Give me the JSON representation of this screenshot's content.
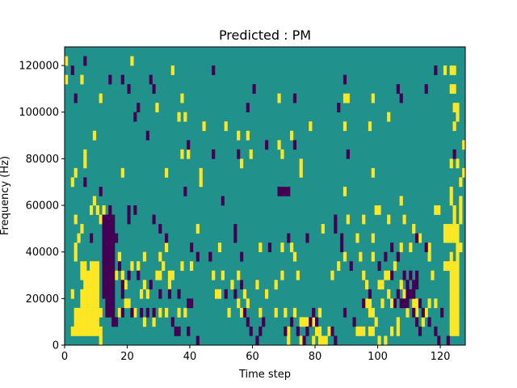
{
  "chart_data": {
    "type": "heatmap",
    "title": "Predicted : PM",
    "xlabel": "Time step",
    "ylabel": "Frequency (Hz)",
    "xlim": [
      0,
      128
    ],
    "ylim": [
      0,
      128000
    ],
    "x_ticks": [
      0,
      20,
      40,
      60,
      80,
      100,
      120
    ],
    "y_ticks": [
      0,
      20000,
      40000,
      60000,
      80000,
      100000,
      120000
    ],
    "x_tick_labels": [
      "0",
      "20",
      "40",
      "60",
      "80",
      "100",
      "120"
    ],
    "y_tick_labels": [
      "0",
      "20000",
      "40000",
      "60000",
      "80000",
      "100000",
      "120000"
    ],
    "time_steps": 128,
    "frequency_bins": 32,
    "bin_height_hz": 4000,
    "value_levels": [
      -1,
      0,
      1
    ],
    "colors": {
      "-1": "#440154",
      "0": "#21918c",
      "1": "#fde725"
    },
    "cells_high": [
      [
        1,
        31
      ],
      [
        1,
        29
      ],
      [
        6,
        29
      ],
      [
        22,
        31
      ],
      [
        35,
        30
      ],
      [
        122,
        30
      ],
      [
        124,
        30
      ],
      [
        125,
        30
      ],
      [
        12,
        27
      ],
      [
        38,
        27
      ],
      [
        69,
        27
      ],
      [
        90,
        27
      ],
      [
        91,
        27
      ],
      [
        99,
        27
      ],
      [
        124,
        28
      ],
      [
        125,
        28
      ],
      [
        30,
        26
      ],
      [
        39,
        25
      ],
      [
        37,
        25
      ],
      [
        104,
        25
      ],
      [
        125,
        26
      ],
      [
        126,
        26
      ],
      [
        126,
        25
      ],
      [
        45,
        24
      ],
      [
        52,
        24
      ],
      [
        79,
        24
      ],
      [
        90,
        24
      ],
      [
        98,
        24
      ],
      [
        125,
        24
      ],
      [
        10,
        23
      ],
      [
        56,
        23
      ],
      [
        59,
        23
      ],
      [
        73,
        23
      ],
      [
        69,
        22
      ],
      [
        128,
        22
      ],
      [
        38,
        21
      ],
      [
        40,
        21
      ],
      [
        60,
        21
      ],
      [
        70,
        21
      ],
      [
        76,
        20
      ],
      [
        57,
        20
      ],
      [
        44,
        19
      ],
      [
        76,
        19
      ],
      [
        99,
        19
      ],
      [
        124,
        20
      ],
      [
        126,
        20
      ],
      [
        7,
        21
      ],
      [
        7,
        20
      ],
      [
        4,
        19
      ],
      [
        3,
        18
      ],
      [
        19,
        19
      ],
      [
        33,
        19
      ],
      [
        44,
        18
      ],
      [
        127,
        18
      ],
      [
        128,
        19
      ],
      [
        10,
        16
      ],
      [
        9,
        15
      ],
      [
        11,
        15
      ],
      [
        12,
        14
      ],
      [
        90,
        17
      ],
      [
        124,
        17
      ],
      [
        4,
        14
      ],
      [
        6,
        13
      ],
      [
        13,
        15
      ],
      [
        5,
        12
      ],
      [
        43,
        13
      ],
      [
        83,
        13
      ],
      [
        99,
        12
      ],
      [
        124,
        16
      ],
      [
        125,
        15
      ],
      [
        4,
        10
      ],
      [
        6,
        9
      ],
      [
        7,
        9
      ],
      [
        9,
        9
      ],
      [
        10,
        9
      ],
      [
        11,
        9
      ],
      [
        4,
        11
      ],
      [
        18,
        10
      ],
      [
        26,
        10
      ],
      [
        31,
        10
      ],
      [
        33,
        11
      ],
      [
        50,
        11
      ],
      [
        63,
        11
      ],
      [
        70,
        11
      ],
      [
        73,
        11
      ],
      [
        99,
        10
      ],
      [
        108,
        11
      ],
      [
        111,
        11
      ],
      [
        117,
        10
      ],
      [
        122,
        9
      ],
      [
        123,
        9
      ],
      [
        124,
        10
      ],
      [
        126,
        10
      ],
      [
        6,
        8
      ],
      [
        7,
        8
      ],
      [
        8,
        8
      ],
      [
        9,
        8
      ],
      [
        10,
        8
      ],
      [
        11,
        8
      ],
      [
        7,
        7
      ],
      [
        8,
        7
      ],
      [
        9,
        7
      ],
      [
        10,
        7
      ],
      [
        11,
        7
      ],
      [
        6,
        6
      ],
      [
        7,
        6
      ],
      [
        8,
        6
      ],
      [
        9,
        6
      ],
      [
        10,
        6
      ],
      [
        11,
        6
      ],
      [
        3,
        6
      ],
      [
        6,
        5
      ],
      [
        7,
        5
      ],
      [
        8,
        5
      ],
      [
        9,
        5
      ],
      [
        10,
        5
      ],
      [
        11,
        5
      ],
      [
        4,
        4
      ],
      [
        5,
        4
      ],
      [
        6,
        4
      ],
      [
        7,
        4
      ],
      [
        8,
        4
      ],
      [
        9,
        4
      ],
      [
        10,
        4
      ],
      [
        11,
        4
      ],
      [
        12,
        4
      ],
      [
        4,
        3
      ],
      [
        5,
        3
      ],
      [
        6,
        3
      ],
      [
        7,
        3
      ],
      [
        8,
        3
      ],
      [
        9,
        3
      ],
      [
        10,
        3
      ],
      [
        11,
        3
      ],
      [
        3,
        2
      ],
      [
        4,
        2
      ],
      [
        5,
        2
      ],
      [
        6,
        2
      ],
      [
        7,
        2
      ],
      [
        8,
        2
      ],
      [
        9,
        2
      ],
      [
        10,
        2
      ],
      [
        11,
        2
      ],
      [
        12,
        2
      ],
      [
        12,
        1
      ],
      [
        17,
        8
      ],
      [
        19,
        8
      ],
      [
        20,
        7
      ],
      [
        22,
        9
      ],
      [
        24,
        9
      ],
      [
        26,
        7
      ],
      [
        30,
        8
      ],
      [
        31,
        8
      ],
      [
        32,
        9
      ],
      [
        34,
        8
      ],
      [
        34,
        7
      ],
      [
        35,
        8
      ],
      [
        38,
        9
      ],
      [
        41,
        9
      ],
      [
        20,
        5
      ],
      [
        21,
        5
      ],
      [
        25,
        6
      ],
      [
        27,
        6
      ],
      [
        18,
        4
      ],
      [
        23,
        4
      ],
      [
        26,
        3
      ],
      [
        29,
        3
      ],
      [
        31,
        4
      ],
      [
        33,
        4
      ],
      [
        37,
        4
      ],
      [
        39,
        4
      ],
      [
        47,
        10
      ],
      [
        48,
        8
      ],
      [
        51,
        8
      ],
      [
        54,
        7
      ],
      [
        56,
        8
      ],
      [
        57,
        7
      ],
      [
        58,
        6
      ],
      [
        59,
        5
      ],
      [
        62,
        7
      ],
      [
        65,
        6
      ],
      [
        68,
        7
      ],
      [
        70,
        8
      ],
      [
        74,
        10
      ],
      [
        75,
        8
      ],
      [
        49,
        6
      ],
      [
        50,
        6
      ],
      [
        53,
        4
      ],
      [
        56,
        5
      ],
      [
        57,
        4
      ],
      [
        63,
        4
      ],
      [
        68,
        4
      ],
      [
        71,
        4
      ],
      [
        74,
        4
      ],
      [
        76,
        3
      ],
      [
        77,
        3
      ],
      [
        78,
        3
      ],
      [
        80,
        3
      ],
      [
        82,
        4
      ],
      [
        72,
        2
      ],
      [
        72,
        1
      ],
      [
        76,
        1
      ],
      [
        80,
        1
      ],
      [
        82,
        1
      ],
      [
        83,
        1
      ],
      [
        84,
        1
      ],
      [
        81,
        2
      ],
      [
        82,
        2
      ],
      [
        85,
        2
      ],
      [
        86,
        8
      ],
      [
        88,
        9
      ],
      [
        90,
        10
      ],
      [
        94,
        12
      ],
      [
        95,
        10
      ],
      [
        96,
        8
      ],
      [
        97,
        7
      ],
      [
        97,
        5
      ],
      [
        98,
        5
      ],
      [
        98,
        4
      ],
      [
        99,
        4
      ],
      [
        100,
        3
      ],
      [
        102,
        5
      ],
      [
        104,
        6
      ],
      [
        105,
        5
      ],
      [
        94,
        2
      ],
      [
        95,
        2
      ],
      [
        96,
        2
      ],
      [
        98,
        2
      ],
      [
        99,
        2
      ],
      [
        101,
        1
      ],
      [
        103,
        1
      ],
      [
        105,
        2
      ],
      [
        107,
        2
      ],
      [
        107,
        3
      ],
      [
        110,
        4
      ],
      [
        113,
        5
      ],
      [
        115,
        3
      ],
      [
        116,
        4
      ],
      [
        91,
        14
      ],
      [
        96,
        14
      ],
      [
        100,
        15
      ],
      [
        101,
        15
      ],
      [
        104,
        14
      ],
      [
        108,
        16
      ],
      [
        109,
        14
      ],
      [
        112,
        13
      ],
      [
        114,
        12
      ],
      [
        117,
        11
      ],
      [
        118,
        8
      ],
      [
        101,
        7
      ],
      [
        102,
        7
      ],
      [
        103,
        8
      ],
      [
        104,
        8
      ],
      [
        106,
        9
      ],
      [
        108,
        7
      ],
      [
        109,
        6
      ],
      [
        112,
        5
      ],
      [
        113,
        4
      ],
      [
        117,
        5
      ],
      [
        119,
        5
      ],
      [
        122,
        13
      ],
      [
        123,
        13
      ],
      [
        124,
        13
      ],
      [
        125,
        13
      ],
      [
        126,
        13
      ],
      [
        122,
        12
      ],
      [
        123,
        12
      ],
      [
        124,
        12
      ],
      [
        125,
        12
      ],
      [
        126,
        12
      ],
      [
        124,
        9
      ],
      [
        125,
        9
      ],
      [
        126,
        9
      ],
      [
        124,
        8
      ],
      [
        125,
        8
      ],
      [
        126,
        8
      ],
      [
        124,
        7
      ],
      [
        125,
        7
      ],
      [
        126,
        7
      ],
      [
        124,
        6
      ],
      [
        125,
        6
      ],
      [
        126,
        6
      ],
      [
        124,
        5
      ],
      [
        125,
        5
      ],
      [
        126,
        5
      ],
      [
        124,
        4
      ],
      [
        125,
        4
      ],
      [
        126,
        4
      ],
      [
        124,
        3
      ],
      [
        125,
        3
      ],
      [
        126,
        3
      ],
      [
        124,
        2
      ],
      [
        125,
        2
      ],
      [
        126,
        2
      ],
      [
        127,
        16
      ],
      [
        127,
        15
      ],
      [
        125,
        14
      ],
      [
        127,
        14
      ],
      [
        126,
        11
      ],
      [
        127,
        11
      ],
      [
        119,
        15
      ],
      [
        120,
        15
      ]
    ],
    "cells_low": [
      [
        7,
        31
      ],
      [
        3,
        30
      ],
      [
        4,
        27
      ],
      [
        15,
        29
      ],
      [
        19,
        29
      ],
      [
        23,
        25
      ],
      [
        24,
        26
      ],
      [
        28,
        29
      ],
      [
        48,
        30
      ],
      [
        59,
        26
      ],
      [
        61,
        28
      ],
      [
        74,
        27
      ],
      [
        88,
        26
      ],
      [
        90,
        29
      ],
      [
        107,
        28
      ],
      [
        108,
        27
      ],
      [
        116,
        28
      ],
      [
        119,
        30
      ],
      [
        21,
        28
      ],
      [
        29,
        28
      ],
      [
        27,
        23
      ],
      [
        40,
        22
      ],
      [
        48,
        21
      ],
      [
        56,
        21
      ],
      [
        65,
        22
      ],
      [
        74,
        22
      ],
      [
        91,
        21
      ],
      [
        125,
        21
      ],
      [
        7,
        18
      ],
      [
        12,
        17
      ],
      [
        15,
        15
      ],
      [
        21,
        15
      ],
      [
        23,
        15
      ],
      [
        39,
        17
      ],
      [
        51,
        16
      ],
      [
        69,
        17
      ],
      [
        70,
        17
      ],
      [
        71,
        17
      ],
      [
        72,
        17
      ],
      [
        9,
        12
      ],
      [
        13,
        14
      ],
      [
        14,
        14
      ],
      [
        15,
        14
      ],
      [
        16,
        14
      ],
      [
        21,
        14
      ],
      [
        29,
        14
      ],
      [
        31,
        13
      ],
      [
        41,
        11
      ],
      [
        55,
        13
      ],
      [
        55,
        12
      ],
      [
        78,
        12
      ],
      [
        89,
        12
      ],
      [
        17,
        12
      ],
      [
        33,
        12
      ],
      [
        43,
        10
      ],
      [
        47,
        10
      ],
      [
        57,
        10
      ],
      [
        66,
        11
      ],
      [
        72,
        12
      ],
      [
        87,
        14
      ],
      [
        105,
        11
      ],
      [
        113,
        12
      ],
      [
        116,
        11
      ],
      [
        13,
        13
      ],
      [
        14,
        13
      ],
      [
        15,
        13
      ],
      [
        16,
        13
      ],
      [
        13,
        12
      ],
      [
        14,
        12
      ],
      [
        15,
        12
      ],
      [
        16,
        12
      ],
      [
        13,
        11
      ],
      [
        14,
        11
      ],
      [
        15,
        11
      ],
      [
        16,
        11
      ],
      [
        13,
        10
      ],
      [
        14,
        10
      ],
      [
        15,
        10
      ],
      [
        16,
        10
      ],
      [
        13,
        9
      ],
      [
        14,
        9
      ],
      [
        15,
        9
      ],
      [
        16,
        9
      ],
      [
        13,
        8
      ],
      [
        14,
        8
      ],
      [
        15,
        8
      ],
      [
        16,
        8
      ],
      [
        13,
        7
      ],
      [
        14,
        7
      ],
      [
        15,
        7
      ],
      [
        16,
        7
      ],
      [
        13,
        6
      ],
      [
        14,
        6
      ],
      [
        15,
        6
      ],
      [
        16,
        6
      ],
      [
        14,
        5
      ],
      [
        15,
        5
      ],
      [
        16,
        5
      ],
      [
        14,
        4
      ],
      [
        15,
        4
      ],
      [
        16,
        4
      ],
      [
        18,
        9
      ],
      [
        19,
        7
      ],
      [
        19,
        6
      ],
      [
        21,
        8
      ],
      [
        24,
        8
      ],
      [
        28,
        7
      ],
      [
        31,
        6
      ],
      [
        34,
        6
      ],
      [
        37,
        6
      ],
      [
        40,
        5
      ],
      [
        41,
        5
      ],
      [
        16,
        3
      ],
      [
        17,
        3
      ],
      [
        19,
        4
      ],
      [
        22,
        4
      ],
      [
        25,
        4
      ],
      [
        27,
        4
      ],
      [
        29,
        4
      ],
      [
        35,
        3
      ],
      [
        36,
        2
      ],
      [
        37,
        2
      ],
      [
        40,
        2
      ],
      [
        43,
        1
      ],
      [
        47,
        10
      ],
      [
        52,
        6
      ],
      [
        55,
        6
      ],
      [
        57,
        7
      ],
      [
        58,
        4
      ],
      [
        59,
        3
      ],
      [
        60,
        2
      ],
      [
        62,
        1
      ],
      [
        63,
        2
      ],
      [
        64,
        3
      ],
      [
        71,
        2
      ],
      [
        73,
        3
      ],
      [
        75,
        2
      ],
      [
        77,
        1
      ],
      [
        78,
        2
      ],
      [
        79,
        3
      ],
      [
        80,
        4
      ],
      [
        81,
        3
      ],
      [
        86,
        2
      ],
      [
        87,
        1
      ],
      [
        90,
        4
      ],
      [
        93,
        3
      ],
      [
        87,
        13
      ],
      [
        89,
        11
      ],
      [
        92,
        9
      ],
      [
        96,
        5
      ],
      [
        98,
        6
      ],
      [
        101,
        9
      ],
      [
        103,
        10
      ],
      [
        105,
        8
      ],
      [
        107,
        10
      ],
      [
        109,
        8
      ],
      [
        110,
        7
      ],
      [
        111,
        8
      ],
      [
        112,
        4
      ],
      [
        113,
        3
      ],
      [
        114,
        2
      ],
      [
        114,
        5
      ],
      [
        115,
        4
      ],
      [
        117,
        3
      ],
      [
        119,
        2
      ],
      [
        120,
        1
      ],
      [
        121,
        4
      ],
      [
        123,
        1
      ],
      [
        106,
        5
      ],
      [
        107,
        6
      ],
      [
        108,
        5
      ],
      [
        109,
        5
      ],
      [
        110,
        6
      ],
      [
        110,
        5
      ],
      [
        111,
        6
      ],
      [
        112,
        6
      ],
      [
        112,
        7
      ],
      [
        113,
        8
      ],
      [
        113,
        7
      ]
    ]
  }
}
